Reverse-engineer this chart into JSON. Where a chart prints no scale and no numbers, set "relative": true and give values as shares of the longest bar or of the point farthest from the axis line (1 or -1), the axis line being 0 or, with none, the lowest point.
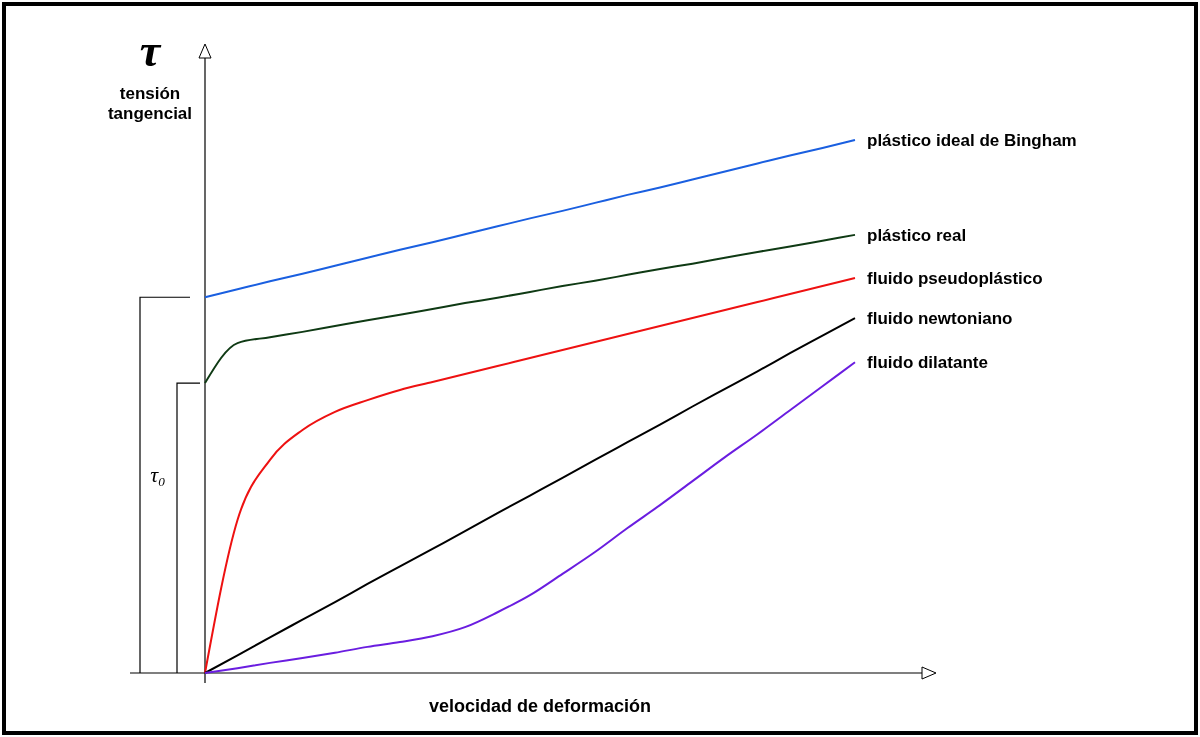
{
  "chart_data": {
    "type": "line",
    "relative": true,
    "xlabel": "velocidad de deformación",
    "ylabel": "τ tensión tangencial",
    "annotations": [
      "τ₀"
    ],
    "categories": [
      null,
      null,
      null,
      null,
      null,
      null,
      null,
      null,
      null,
      null,
      null,
      null,
      null,
      null,
      null,
      null,
      null,
      null,
      null,
      null,
      null
    ],
    "series": [
      {
        "name": "plástico ideal de Bingham",
        "color": "#1a5fe0",
        "values": [
          0.705,
          0.72,
          0.735,
          0.749,
          0.764,
          0.779,
          0.794,
          0.808,
          0.823,
          0.838,
          0.853,
          0.867,
          0.882,
          0.897,
          0.911,
          0.926,
          0.941,
          0.956,
          0.971,
          0.985,
          1
        ]
      },
      {
        "name": "plástico real",
        "color": "#0f3a14",
        "values": [
          0.544,
          0.619,
          0.63,
          0.64,
          0.651,
          0.662,
          0.672,
          0.683,
          0.694,
          0.704,
          0.715,
          0.726,
          0.736,
          0.747,
          0.758,
          0.768,
          0.779,
          0.79,
          0.8,
          0.811,
          0.822
        ]
      },
      {
        "name": "fluido pseudoplástico",
        "color": "#ee1111",
        "values": [
          0,
          0.287,
          0.4,
          0.456,
          0.49,
          0.512,
          0.531,
          0.546,
          0.561,
          0.576,
          0.591,
          0.606,
          0.621,
          0.636,
          0.651,
          0.666,
          0.681,
          0.696,
          0.711,
          0.726,
          0.741
        ]
      },
      {
        "name": "fluido newtoniano",
        "color": "#000000",
        "values": [
          0,
          0.033,
          0.067,
          0.1,
          0.133,
          0.167,
          0.2,
          0.233,
          0.266,
          0.3,
          0.333,
          0.366,
          0.4,
          0.433,
          0.466,
          0.5,
          0.533,
          0.566,
          0.6,
          0.633,
          0.666
        ]
      },
      {
        "name": "fluido dilatante",
        "color": "#6a1de0",
        "values": [
          0,
          0.009,
          0.019,
          0.028,
          0.038,
          0.049,
          0.058,
          0.069,
          0.086,
          0.114,
          0.146,
          0.186,
          0.227,
          0.272,
          0.315,
          0.36,
          0.405,
          0.448,
          0.493,
          0.538,
          0.583
        ]
      }
    ]
  }
}
